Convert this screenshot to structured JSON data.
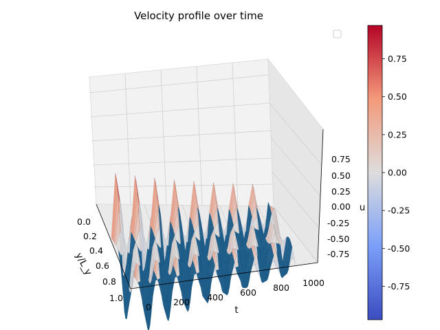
{
  "chart_data": {
    "type": "surface",
    "title": "Velocity profile over time",
    "xlabel": "y/L_y",
    "ylabel": "t",
    "zlabel": "u",
    "x_ticks": [
      "0.0",
      "0.2",
      "0.4",
      "0.6",
      "0.8",
      "1.0"
    ],
    "y_ticks": [
      "0",
      "200",
      "400",
      "600",
      "800",
      "1000"
    ],
    "z_ticks": [
      "-0.75",
      "-0.50",
      "-0.25",
      "0.00",
      "0.25",
      "0.50",
      "0.75"
    ],
    "xlim": [
      0,
      1
    ],
    "ylim": [
      0,
      1000
    ],
    "zlim": [
      -1,
      1
    ],
    "z_range": [
      -0.97,
      0.97
    ],
    "colormap": "coolwarm",
    "surface_edge_color": "#1f5f8b",
    "colorbar": {
      "ticks": [
        "0.75",
        "0.50",
        "0.25",
        "0.00",
        "-0.25",
        "-0.50",
        "-0.75"
      ],
      "tick_values": [
        0.75,
        0.5,
        0.25,
        0.0,
        -0.25,
        -0.5,
        -0.75
      ],
      "min": -0.97,
      "max": 0.97
    },
    "legend": {
      "placement": "top-right",
      "entries": []
    },
    "grid": true
  }
}
